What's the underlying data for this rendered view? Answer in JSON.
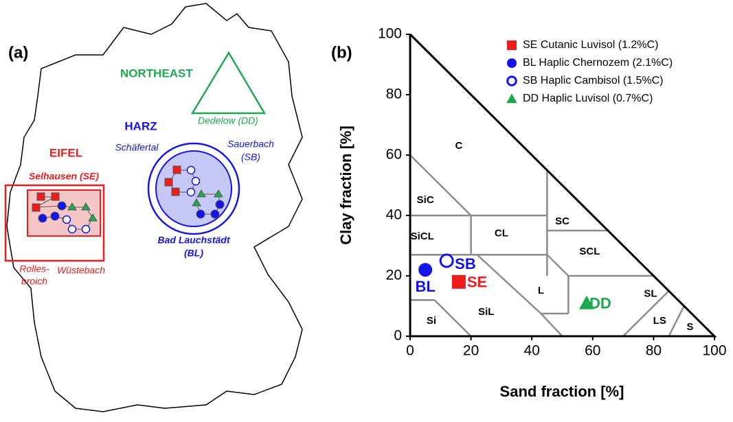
{
  "map": {
    "panel_label": "(a)",
    "texts": [
      "NORTHEAST",
      "Dedelow (DD)",
      "HARZ",
      "Schäfertal",
      "Sauerbach",
      "(SB)",
      "EIFEL",
      "Selhausen (SE)",
      "Bad Lauchstädt",
      "(BL)",
      "Rolles-",
      "broich",
      "Wüstebach"
    ]
  },
  "chart_data": {
    "type": "scatter",
    "panel_label": "(b)",
    "xlabel": "Sand fraction [%]",
    "ylabel": "Clay fraction [%]",
    "xlim": [
      0,
      100
    ],
    "ylim": [
      0,
      100
    ],
    "xticks": [
      0,
      20,
      40,
      60,
      80,
      100
    ],
    "yticks": [
      0,
      20,
      40,
      60,
      80,
      100
    ],
    "texture_classes": [
      "C",
      "SiC",
      "SiCL",
      "CL",
      "SC",
      "SCL",
      "L",
      "SiL",
      "Si",
      "SL",
      "LS",
      "S"
    ],
    "legend": "upper right",
    "series": [
      {
        "name": "SE Cutanic Luvisol (1.2%C)",
        "color": "#ee1c1c",
        "marker": "square",
        "x": [
          16
        ],
        "values": [
          18
        ],
        "point_labels": [
          "SE"
        ]
      },
      {
        "name": "BL Haplic Chernozem (2.1%C)",
        "color": "#1414e6",
        "marker": "circle",
        "x": [
          5
        ],
        "values": [
          22
        ],
        "point_labels": [
          "BL"
        ]
      },
      {
        "name": "SB Haplic Cambisol (1.5%C)",
        "color": "#1414e6",
        "marker": "open-circle",
        "x": [
          12
        ],
        "values": [
          25
        ],
        "point_labels": [
          "SB"
        ]
      },
      {
        "name": "DD Haplic Luvisol (0.7%C)",
        "color": "#1fa84f",
        "marker": "triangle",
        "x": [
          58
        ],
        "values": [
          11
        ],
        "point_labels": [
          "DD"
        ]
      }
    ]
  }
}
